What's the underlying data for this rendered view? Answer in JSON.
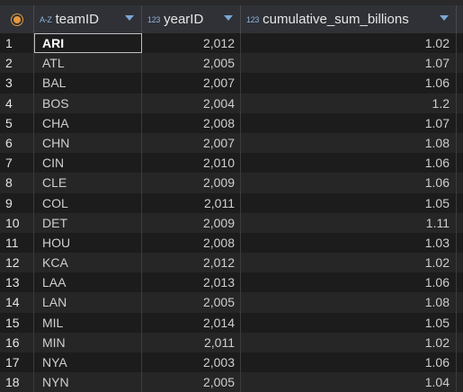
{
  "columns": [
    {
      "type_label": "A-Z",
      "name": "teamID"
    },
    {
      "type_label": "123",
      "name": "yearID"
    },
    {
      "type_label": "123",
      "name": "cumulative_sum_billions"
    }
  ],
  "rows": [
    {
      "num": "1",
      "teamID": "ARI",
      "yearID": "2,012",
      "sum": "1.02"
    },
    {
      "num": "2",
      "teamID": "ATL",
      "yearID": "2,005",
      "sum": "1.07"
    },
    {
      "num": "3",
      "teamID": "BAL",
      "yearID": "2,007",
      "sum": "1.06"
    },
    {
      "num": "4",
      "teamID": "BOS",
      "yearID": "2,004",
      "sum": "1.2"
    },
    {
      "num": "5",
      "teamID": "CHA",
      "yearID": "2,008",
      "sum": "1.07"
    },
    {
      "num": "6",
      "teamID": "CHN",
      "yearID": "2,007",
      "sum": "1.08"
    },
    {
      "num": "7",
      "teamID": "CIN",
      "yearID": "2,010",
      "sum": "1.06"
    },
    {
      "num": "8",
      "teamID": "CLE",
      "yearID": "2,009",
      "sum": "1.06"
    },
    {
      "num": "9",
      "teamID": "COL",
      "yearID": "2,011",
      "sum": "1.05"
    },
    {
      "num": "10",
      "teamID": "DET",
      "yearID": "2,009",
      "sum": "1.11"
    },
    {
      "num": "11",
      "teamID": "HOU",
      "yearID": "2,008",
      "sum": "1.03"
    },
    {
      "num": "12",
      "teamID": "KCA",
      "yearID": "2,012",
      "sum": "1.02"
    },
    {
      "num": "13",
      "teamID": "LAA",
      "yearID": "2,013",
      "sum": "1.06"
    },
    {
      "num": "14",
      "teamID": "LAN",
      "yearID": "2,005",
      "sum": "1.08"
    },
    {
      "num": "15",
      "teamID": "MIL",
      "yearID": "2,014",
      "sum": "1.05"
    },
    {
      "num": "16",
      "teamID": "MIN",
      "yearID": "2,011",
      "sum": "1.02"
    },
    {
      "num": "17",
      "teamID": "NYA",
      "yearID": "2,003",
      "sum": "1.06"
    },
    {
      "num": "18",
      "teamID": "NYN",
      "yearID": "2,005",
      "sum": "1.04"
    }
  ],
  "selected_cell": {
    "row": 0,
    "column": "teamID"
  },
  "icons": {
    "corner": "record-indicator-icon",
    "sort": "sort-arrow-icon"
  },
  "colors": {
    "accent": "#e69a3c",
    "type_label": "#8fb3d9",
    "sort_arrow": "#7aa7d6"
  }
}
